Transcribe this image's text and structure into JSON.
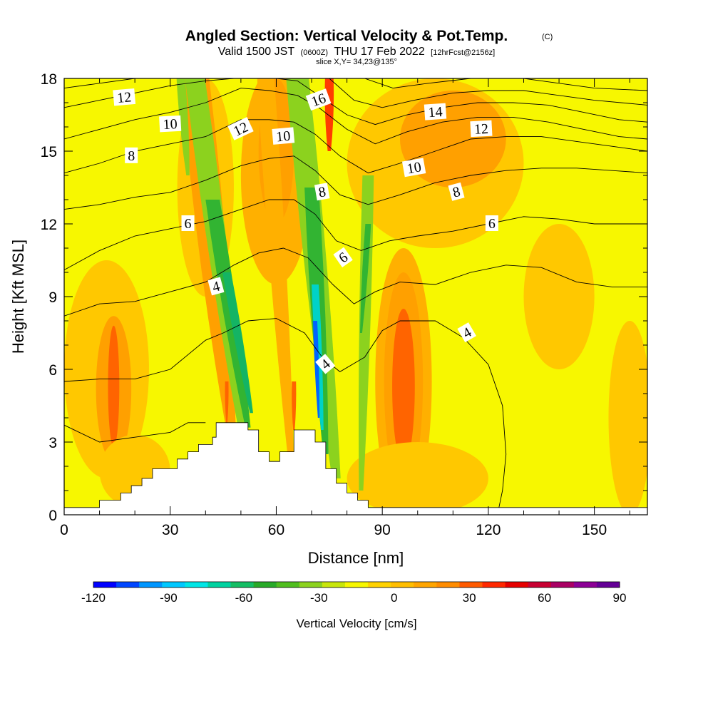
{
  "title": {
    "main": "Angled Section: Vertical Velocity & Pot.Temp.",
    "copyright": "(C)",
    "valid_prefix": "Valid 1500 JST",
    "utc": "(0600Z)",
    "valid_suffix": "THU 17 Feb 2022",
    "forecast": "[12hrFcst@2156z]",
    "slice": "slice X,Y= 34,23@135°"
  },
  "chart_data": {
    "type": "heatmap",
    "xlabel": "Distance [nm]",
    "ylabel": "Height [Kft MSL]",
    "xlim": [
      0,
      165
    ],
    "ylim": [
      0,
      18
    ],
    "xticks": [
      0,
      30,
      60,
      90,
      120,
      150
    ],
    "yticks": [
      0,
      3,
      6,
      9,
      12,
      15,
      18
    ],
    "background_color": "#f7f700",
    "terrain": [
      [
        0,
        0.3
      ],
      [
        10,
        0.3
      ],
      [
        10,
        0.6
      ],
      [
        16,
        0.6
      ],
      [
        16,
        0.9
      ],
      [
        19,
        0.9
      ],
      [
        19,
        1.2
      ],
      [
        22,
        1.2
      ],
      [
        22,
        1.5
      ],
      [
        25,
        1.5
      ],
      [
        25,
        1.9
      ],
      [
        32,
        1.9
      ],
      [
        32,
        2.3
      ],
      [
        35,
        2.3
      ],
      [
        35,
        2.6
      ],
      [
        38,
        2.6
      ],
      [
        38,
        2.9
      ],
      [
        42,
        2.9
      ],
      [
        42,
        3.2
      ],
      [
        43,
        3.2
      ],
      [
        43,
        3.8
      ],
      [
        52,
        3.8
      ],
      [
        52,
        3.5
      ],
      [
        55,
        3.5
      ],
      [
        55,
        2.6
      ],
      [
        58,
        2.6
      ],
      [
        58,
        2.2
      ],
      [
        61,
        2.2
      ],
      [
        61,
        2.6
      ],
      [
        65,
        2.6
      ],
      [
        65,
        3.5
      ],
      [
        71,
        3.5
      ],
      [
        71,
        3.0
      ],
      [
        74,
        3.0
      ],
      [
        74,
        1.9
      ],
      [
        77,
        1.9
      ],
      [
        77,
        1.3
      ],
      [
        80,
        1.3
      ],
      [
        80,
        0.9
      ],
      [
        83,
        0.9
      ],
      [
        83,
        0.6
      ],
      [
        86,
        0.6
      ],
      [
        86,
        0.3
      ],
      [
        165,
        0.3
      ]
    ],
    "velocity_regions": [
      {
        "value": 15,
        "color": "#ffc800",
        "cx": 12,
        "cy": 6,
        "rx": 12,
        "ry": 4.5
      },
      {
        "value": 30,
        "color": "#ffa000",
        "cx": 14,
        "cy": 5.2,
        "rx": 5,
        "ry": 3
      },
      {
        "value": 40,
        "color": "#ff6400",
        "cx": 14,
        "cy": 5.3,
        "rx": 1.6,
        "ry": 2.5
      },
      {
        "value": 15,
        "color": "#ffc800",
        "cx": 20,
        "cy": 1.8,
        "rx": 10,
        "ry": 1.5
      },
      {
        "value": 15,
        "color": "#ffc800",
        "cx": 40,
        "cy": 13.5,
        "rx": 8,
        "ry": 4.5
      },
      {
        "value": 20,
        "color": "#ffb000",
        "cx": 60,
        "cy": 14,
        "rx": 10,
        "ry": 4.5
      },
      {
        "value": 30,
        "color": "#ffa000",
        "cx": 60,
        "cy": 15,
        "rx": 5,
        "ry": 3
      },
      {
        "value": 15,
        "color": "#ffc800",
        "cx": 105,
        "cy": 14.5,
        "rx": 25,
        "ry": 3.5
      },
      {
        "value": 30,
        "color": "#ffa000",
        "cx": 110,
        "cy": 15.5,
        "rx": 15,
        "ry": 2
      },
      {
        "value": 20,
        "color": "#ffb000",
        "cx": 96,
        "cy": 5.5,
        "rx": 8,
        "ry": 5.5
      },
      {
        "value": 30,
        "color": "#ffa000",
        "cx": 96,
        "cy": 5.5,
        "rx": 5.5,
        "ry": 4.5
      },
      {
        "value": 45,
        "color": "#ff6400",
        "cx": 96,
        "cy": 5.3,
        "rx": 3.2,
        "ry": 3.2
      },
      {
        "value": 15,
        "color": "#ffc800",
        "cx": 100,
        "cy": 1.5,
        "rx": 20,
        "ry": 1.5
      },
      {
        "value": 15,
        "color": "#ffc800",
        "cx": 160,
        "cy": 4,
        "rx": 6,
        "ry": 4
      },
      {
        "value": 15,
        "color": "#ffc800",
        "cx": 140,
        "cy": 9,
        "rx": 10,
        "ry": 3
      }
    ],
    "velocity_bands": [
      {
        "value": 30,
        "color": "#ffa000",
        "cx_bottom": 47,
        "cx_top": 37,
        "y_bottom": 3.8,
        "y_top": 18,
        "width": 10
      },
      {
        "value": -30,
        "color": "#8cd21e",
        "cx_bottom": 50,
        "cx_top": 37,
        "y_bottom": 3.8,
        "y_top": 18,
        "width": 7
      },
      {
        "value": -45,
        "color": "#32b432",
        "cx_bottom": 52,
        "cx_top": 42,
        "y_bottom": 3.6,
        "y_top": 13,
        "width": 5
      },
      {
        "value": -60,
        "color": "#14b464",
        "cx_bottom": 53,
        "cx_top": 46,
        "y_bottom": 4.2,
        "y_top": 10,
        "width": 3
      },
      {
        "value": 40,
        "color": "#ff6400",
        "cx_bottom": 46,
        "cx_top": 46,
        "y_bottom": 3.8,
        "y_top": 5.5,
        "width": 1.2
      },
      {
        "value": 20,
        "color": "#ffb000",
        "cx_bottom": 64,
        "cx_top": 57,
        "y_bottom": 2.6,
        "y_top": 18,
        "width": 6
      },
      {
        "value": 45,
        "color": "#ff6400",
        "cx_bottom": 65,
        "cx_top": 65,
        "y_bottom": 3.5,
        "y_top": 5.5,
        "width": 1.5
      },
      {
        "value": 30,
        "color": "#ffa000",
        "cx_bottom": 75,
        "cx_top": 66,
        "y_bottom": 3.0,
        "y_top": 18,
        "width": 5
      },
      {
        "value": 50,
        "color": "#ff3c00",
        "cx_bottom": 75,
        "cx_top": 75,
        "y_bottom": 15,
        "y_top": 18,
        "width": 3
      },
      {
        "value": -30,
        "color": "#8cd21e",
        "cx_bottom": 77,
        "cx_top": 66,
        "y_bottom": 1.5,
        "y_top": 18,
        "width": 8
      },
      {
        "value": -45,
        "color": "#32b432",
        "cx_bottom": 74,
        "cx_top": 70,
        "y_bottom": 2.5,
        "y_top": 13.5,
        "width": 5
      },
      {
        "value": -75,
        "color": "#00d2c8",
        "cx_bottom": 73,
        "cx_top": 71,
        "y_bottom": 3.5,
        "y_top": 9.5,
        "width": 2.5
      },
      {
        "value": -105,
        "color": "#0064ff",
        "cx_bottom": 72,
        "cx_top": 71,
        "y_bottom": 4.0,
        "y_top": 8,
        "width": 1.5
      },
      {
        "value": -30,
        "color": "#8cd21e",
        "cx_bottom": 84,
        "cx_top": 86,
        "y_bottom": 1.0,
        "y_top": 14,
        "width": 4
      },
      {
        "value": -45,
        "color": "#32b432",
        "cx_bottom": 84,
        "cx_top": 86,
        "y_bottom": 7.5,
        "y_top": 12,
        "width": 2
      },
      {
        "value": -30,
        "color": "#8cd21e",
        "cx_bottom": 35,
        "cx_top": 33,
        "y_bottom": 14,
        "y_top": 18,
        "width": 3
      }
    ],
    "theta_contours": [
      [
        [
          0,
          3.7
        ],
        [
          10,
          3.0
        ],
        [
          20,
          3.2
        ],
        [
          30,
          3.4
        ],
        [
          35,
          3.8
        ],
        [
          40,
          3.8
        ]
      ],
      [
        [
          0,
          5.5
        ],
        [
          10,
          5.6
        ],
        [
          20,
          5.6
        ],
        [
          30,
          6.0
        ],
        [
          40,
          7.2
        ],
        [
          45,
          7.5
        ],
        [
          52,
          8.0
        ],
        [
          60,
          8.1
        ],
        [
          68,
          7.5
        ],
        [
          73,
          6.5
        ],
        [
          78,
          5.9
        ],
        [
          85,
          6.5
        ],
        [
          90,
          7.6
        ],
        [
          95,
          8.0
        ],
        [
          105,
          8.0
        ],
        [
          113,
          7.3
        ],
        [
          120,
          6.2
        ],
        [
          124,
          4.5
        ],
        [
          125,
          2.5
        ],
        [
          124,
          1.0
        ],
        [
          123,
          0.3
        ]
      ],
      [
        [
          0,
          8.2
        ],
        [
          10,
          8.7
        ],
        [
          20,
          8.8
        ],
        [
          30,
          9.2
        ],
        [
          40,
          9.6
        ],
        [
          48,
          10.3
        ],
        [
          55,
          10.8
        ],
        [
          62,
          11.0
        ],
        [
          69,
          10.6
        ],
        [
          76,
          9.5
        ],
        [
          82,
          8.7
        ],
        [
          88,
          9.2
        ],
        [
          95,
          9.6
        ],
        [
          105,
          9.5
        ],
        [
          115,
          10.0
        ],
        [
          125,
          10.3
        ],
        [
          135,
          10.2
        ],
        [
          145,
          9.6
        ],
        [
          155,
          9.4
        ],
        [
          165,
          9.4
        ]
      ],
      [
        [
          0,
          10.1
        ],
        [
          10,
          10.9
        ],
        [
          20,
          11.5
        ],
        [
          30,
          11.8
        ],
        [
          40,
          12.1
        ],
        [
          50,
          12.6
        ],
        [
          58,
          13.0
        ],
        [
          65,
          13.0
        ],
        [
          71,
          12.4
        ],
        [
          77,
          11.3
        ],
        [
          84,
          10.9
        ],
        [
          92,
          11.3
        ],
        [
          100,
          11.5
        ],
        [
          110,
          11.7
        ],
        [
          120,
          12.0
        ],
        [
          130,
          12.3
        ],
        [
          140,
          12.2
        ],
        [
          150,
          12.0
        ],
        [
          165,
          12.0
        ]
      ],
      [
        [
          0,
          12.6
        ],
        [
          10,
          12.8
        ],
        [
          20,
          13.1
        ],
        [
          30,
          13.3
        ],
        [
          40,
          13.8
        ],
        [
          50,
          14.4
        ],
        [
          58,
          14.7
        ],
        [
          65,
          14.8
        ],
        [
          71,
          14.2
        ],
        [
          78,
          13.2
        ],
        [
          86,
          12.8
        ],
        [
          95,
          13.2
        ],
        [
          105,
          13.7
        ],
        [
          115,
          14.0
        ],
        [
          125,
          14.2
        ],
        [
          135,
          14.3
        ],
        [
          145,
          14.3
        ],
        [
          155,
          14.2
        ],
        [
          165,
          14.1
        ]
      ],
      [
        [
          0,
          14.1
        ],
        [
          10,
          14.5
        ],
        [
          20,
          15.0
        ],
        [
          30,
          15.3
        ],
        [
          40,
          15.6
        ],
        [
          50,
          16.3
        ],
        [
          58,
          16.3
        ],
        [
          65,
          16.2
        ],
        [
          71,
          15.7
        ],
        [
          78,
          14.8
        ],
        [
          86,
          14.1
        ],
        [
          95,
          14.5
        ],
        [
          105,
          15.0
        ],
        [
          115,
          15.5
        ],
        [
          125,
          15.6
        ],
        [
          135,
          15.6
        ],
        [
          145,
          15.4
        ],
        [
          155,
          15.2
        ],
        [
          165,
          15.0
        ]
      ],
      [
        [
          0,
          15.5
        ],
        [
          10,
          15.9
        ],
        [
          20,
          16.3
        ],
        [
          30,
          16.6
        ],
        [
          40,
          17.0
        ],
        [
          50,
          17.6
        ],
        [
          58,
          17.5
        ],
        [
          66,
          17.3
        ],
        [
          72,
          16.8
        ],
        [
          80,
          15.9
        ],
        [
          88,
          15.3
        ],
        [
          97,
          15.8
        ],
        [
          107,
          16.2
        ],
        [
          117,
          16.4
        ],
        [
          127,
          16.4
        ],
        [
          137,
          16.2
        ],
        [
          147,
          15.9
        ],
        [
          157,
          15.6
        ],
        [
          165,
          15.5
        ]
      ],
      [
        [
          0,
          16.8
        ],
        [
          10,
          17.1
        ],
        [
          20,
          17.4
        ],
        [
          30,
          17.7
        ],
        [
          40,
          17.9
        ],
        [
          48,
          18.0
        ]
      ],
      [
        [
          60,
          18.0
        ],
        [
          66,
          17.9
        ],
        [
          72,
          17.3
        ],
        [
          80,
          16.5
        ],
        [
          88,
          16.1
        ],
        [
          97,
          16.5
        ],
        [
          107,
          16.8
        ],
        [
          117,
          17.0
        ],
        [
          127,
          17.0
        ],
        [
          137,
          16.9
        ],
        [
          147,
          16.6
        ],
        [
          157,
          16.3
        ],
        [
          165,
          16.2
        ]
      ],
      [
        [
          75,
          18.0
        ],
        [
          82,
          17.1
        ],
        [
          90,
          16.8
        ],
        [
          99,
          17.1
        ],
        [
          110,
          17.4
        ],
        [
          120,
          17.5
        ],
        [
          130,
          17.5
        ],
        [
          140,
          17.3
        ],
        [
          150,
          17.1
        ],
        [
          165,
          16.9
        ]
      ],
      [
        [
          85,
          18.0
        ],
        [
          93,
          17.6
        ],
        [
          103,
          17.8
        ],
        [
          115,
          18.0
        ]
      ],
      [
        [
          0,
          17.6
        ],
        [
          10,
          17.8
        ],
        [
          20,
          18.0
        ]
      ],
      [
        [
          130,
          18.0
        ],
        [
          140,
          17.8
        ],
        [
          150,
          17.6
        ],
        [
          165,
          17.5
        ]
      ]
    ],
    "contour_labels": [
      {
        "text": "12",
        "x": 17,
        "y": 17.2,
        "angle": -5
      },
      {
        "text": "10",
        "x": 30,
        "y": 16.1,
        "angle": -3
      },
      {
        "text": "8",
        "x": 19,
        "y": 14.8,
        "angle": 0
      },
      {
        "text": "12",
        "x": 50,
        "y": 15.9,
        "angle": -25
      },
      {
        "text": "10",
        "x": 62,
        "y": 15.6,
        "angle": -5
      },
      {
        "text": "16",
        "x": 72,
        "y": 17.1,
        "angle": -20
      },
      {
        "text": "14",
        "x": 105,
        "y": 16.6,
        "angle": -4
      },
      {
        "text": "12",
        "x": 118,
        "y": 15.9,
        "angle": -3
      },
      {
        "text": "10",
        "x": 99,
        "y": 14.3,
        "angle": -10
      },
      {
        "text": "8",
        "x": 111,
        "y": 13.3,
        "angle": -15
      },
      {
        "text": "8",
        "x": 73,
        "y": 13.3,
        "angle": -10
      },
      {
        "text": "6",
        "x": 35,
        "y": 12.0,
        "angle": 0
      },
      {
        "text": "6",
        "x": 79,
        "y": 10.6,
        "angle": -35
      },
      {
        "text": "6",
        "x": 121,
        "y": 12.0,
        "angle": 0
      },
      {
        "text": "4",
        "x": 43,
        "y": 9.4,
        "angle": -15
      },
      {
        "text": "4",
        "x": 74,
        "y": 6.2,
        "angle": -40
      },
      {
        "text": "4",
        "x": 114,
        "y": 7.5,
        "angle": -30
      }
    ],
    "colorbar": {
      "title": "Vertical Velocity [cm/s]",
      "min": -120,
      "max": 90,
      "tick_values": [
        -120,
        -90,
        -60,
        -30,
        0,
        30,
        60,
        90
      ],
      "tick_labels": [
        "-120",
        "-90",
        "-60",
        "-30",
        "0",
        "30",
        "60",
        "90"
      ],
      "colors": [
        "#0000ff",
        "#0046ff",
        "#0096ff",
        "#00c8ff",
        "#00e6e6",
        "#00d2a0",
        "#14be64",
        "#28aa28",
        "#50be1e",
        "#8cd21e",
        "#c8e60a",
        "#f7f700",
        "#ffd200",
        "#ffbe00",
        "#ffa500",
        "#ff8c00",
        "#ff5a00",
        "#ff2800",
        "#e60000",
        "#c80032",
        "#aa0064",
        "#8c0096",
        "#640096"
      ]
    }
  }
}
